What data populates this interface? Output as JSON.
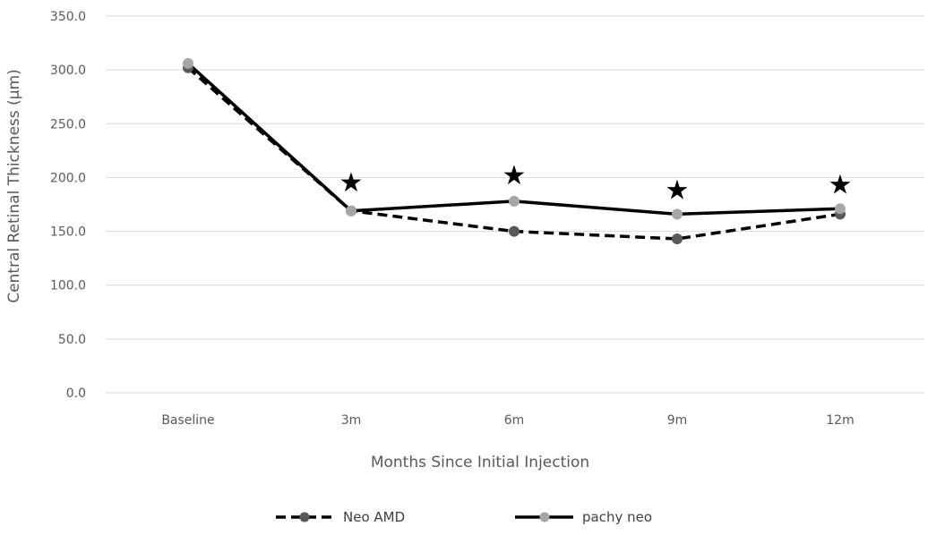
{
  "chart_data": {
    "type": "line",
    "title": "",
    "xlabel": "Months Since Initial Injection",
    "ylabel": "Central Retinal Thickness (µm)",
    "categories": [
      "Baseline",
      "3m",
      "6m",
      "9m",
      "12m"
    ],
    "ylim": [
      0,
      350
    ],
    "ytick_values": [
      0,
      50,
      100,
      150,
      200,
      250,
      300,
      350
    ],
    "yticks": [
      "0.0",
      "50.0",
      "100.0",
      "150.0",
      "200.0",
      "250.0",
      "300.0",
      "350.0"
    ],
    "grid": true,
    "legend_position": "bottom",
    "series": [
      {
        "name": "Neo AMD",
        "values": [
          302,
          169,
          150,
          143,
          166
        ],
        "line_style": "dashed",
        "color": "#000000",
        "marker_color": "#595959"
      },
      {
        "name": "pachy neo",
        "values": [
          306,
          169,
          178,
          166,
          171
        ],
        "line_style": "solid",
        "color": "#000000",
        "marker_color": "#a6a6a6"
      }
    ],
    "annotations": [
      {
        "category": "3m",
        "value": 196,
        "text": "★"
      },
      {
        "category": "6m",
        "value": 203,
        "text": "★"
      },
      {
        "category": "9m",
        "value": 189,
        "text": "★"
      },
      {
        "category": "12m",
        "value": 194,
        "text": "★"
      }
    ],
    "colors": {
      "grid": "#d9d9d9",
      "tick_text": "#595959",
      "axis_title": "#595959"
    }
  }
}
